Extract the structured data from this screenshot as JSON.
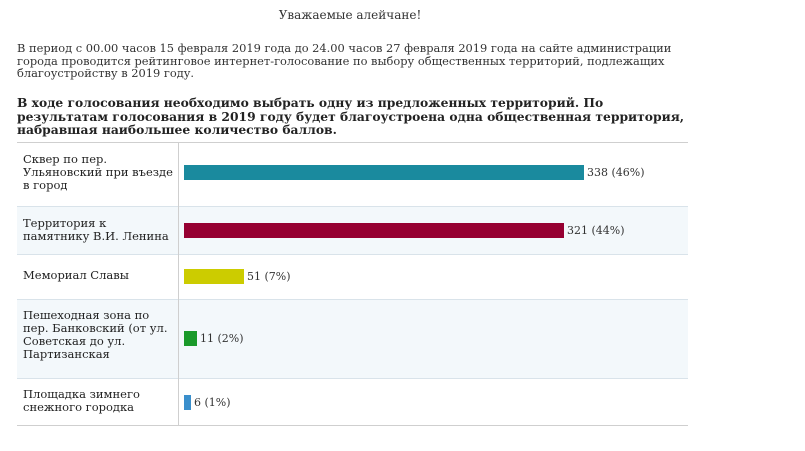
{
  "page": {
    "greeting": "Уважаемые алейчане!",
    "intro": "В период с 00.00 часов 15 февраля 2019 года до 24.00 часов 27 февраля  2019 года на сайте администрации города проводится рейтинговое интернет-голосование по выбору общественных территорий, подлежащих благоустройству в 2019 году.",
    "note": "В ходе голосования необходимо выбрать одну из предложенных территорий.  По результатам голосования в 2019 году будет благоустроена одна общественная территория, набравшая наибольшее количество баллов."
  },
  "poll": {
    "items": [
      {
        "label": "Сквер по пер. Ульяновский при въезде в город",
        "votes": 338,
        "percent": 46,
        "value_text": "338 (46%)",
        "color": "#1a8a9e"
      },
      {
        "label": "Территория к памятнику В.И. Ленина",
        "votes": 321,
        "percent": 44,
        "value_text": "321 (44%)",
        "color": "#960032"
      },
      {
        "label": "Мемориал Славы",
        "votes": 51,
        "percent": 7,
        "value_text": "51 (7%)",
        "color": "#cccc00"
      },
      {
        "label": "Пешеходная зона по пер. Банковский (от ул. Советская до ул. Партизанская",
        "votes": 11,
        "percent": 2,
        "value_text": "11 (2%)",
        "color": "#1a9a2a"
      },
      {
        "label": "Площадка зимнего снежного городка",
        "votes": 6,
        "percent": 1,
        "value_text": "6 (1%)",
        "color": "#3a8fcc"
      }
    ]
  }
}
